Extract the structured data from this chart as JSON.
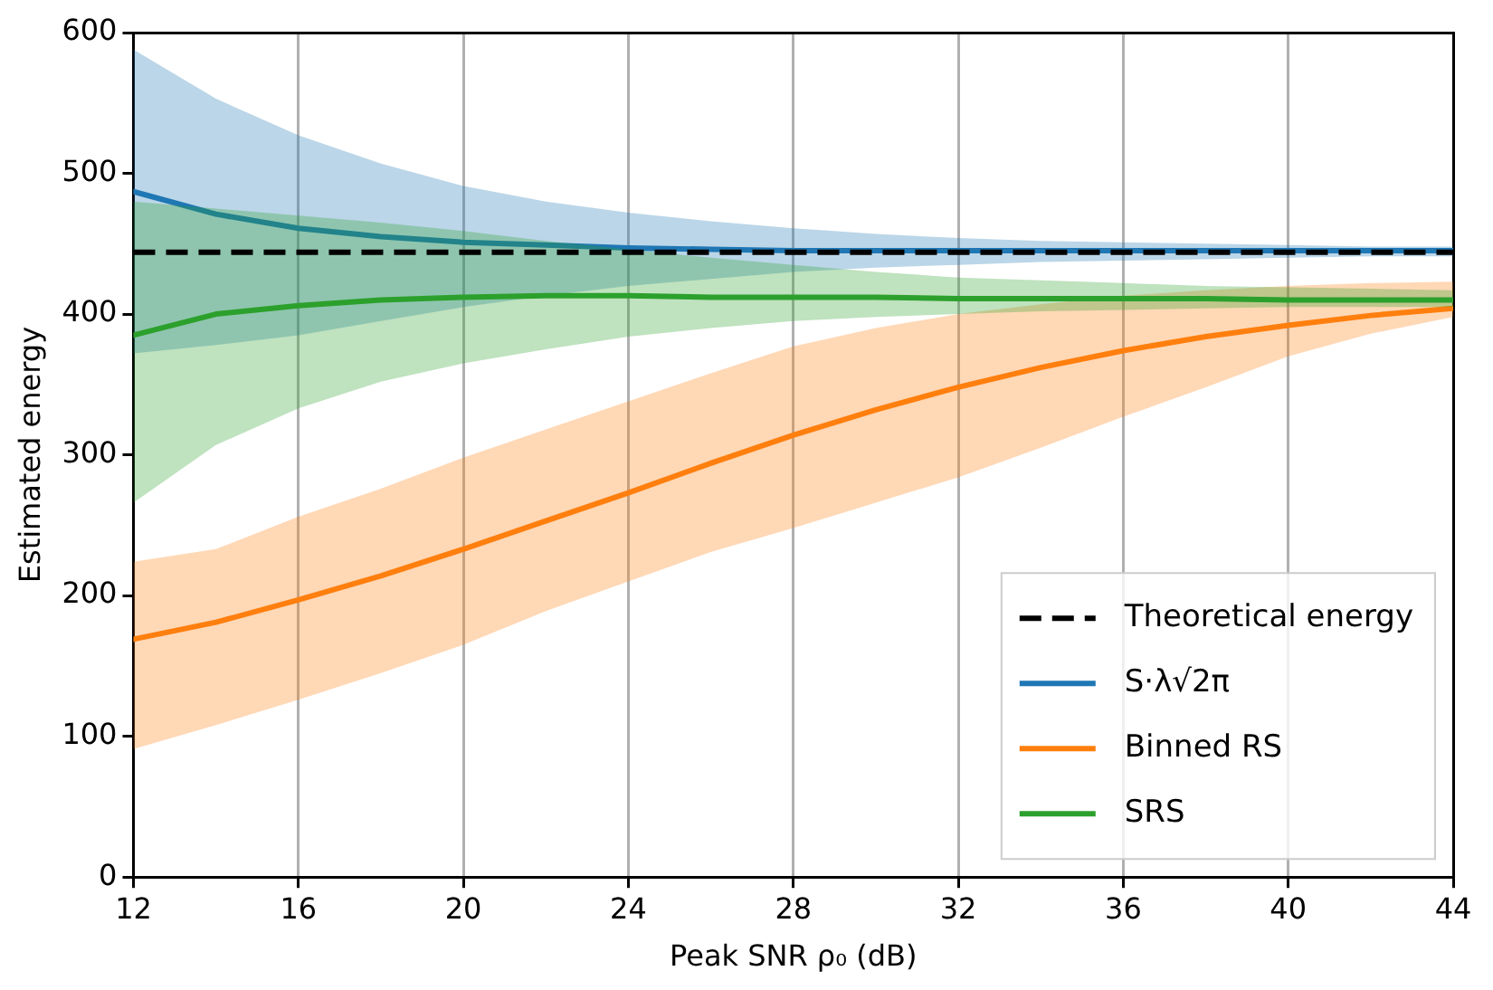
{
  "chart_data": {
    "type": "line",
    "xlabel": "Peak SNR ρ₀ (dB)",
    "ylabel": "Estimated energy",
    "x": [
      12,
      14,
      16,
      18,
      20,
      22,
      24,
      26,
      28,
      30,
      32,
      34,
      36,
      38,
      40,
      42,
      44
    ],
    "xlim": [
      12,
      44
    ],
    "xticks": [
      12,
      16,
      20,
      24,
      28,
      32,
      36,
      40,
      44
    ],
    "ylim": [
      0,
      600
    ],
    "yticks": [
      0,
      100,
      200,
      300,
      400,
      500,
      600
    ],
    "grid": "x",
    "legend": "bottom right",
    "ref_lines": [
      {
        "axis": "y",
        "value": 444,
        "label": "Theoretical energy",
        "color": "#000000",
        "line_style": "dashed"
      }
    ],
    "series": [
      {
        "name": "S·λ√2π",
        "color": "#1f77b4",
        "values": [
          487,
          471,
          461,
          455,
          451,
          449,
          447,
          446,
          445,
          445,
          445,
          445,
          445,
          445,
          445,
          445,
          445
        ],
        "lower": [
          372,
          378,
          385,
          395,
          405,
          413,
          420,
          425,
          430,
          433,
          435,
          437,
          438,
          439,
          440,
          441,
          441
        ],
        "upper": [
          588,
          553,
          527,
          507,
          491,
          480,
          472,
          466,
          461,
          457,
          454,
          452,
          451,
          450,
          449,
          448,
          448
        ]
      },
      {
        "name": "Binned RS",
        "color": "#ff7f0e",
        "values": [
          169,
          181,
          197,
          214,
          233,
          253,
          273,
          294,
          314,
          332,
          348,
          362,
          374,
          384,
          392,
          399,
          404
        ],
        "lower": [
          91,
          108,
          126,
          145,
          165,
          189,
          210,
          231,
          248,
          266,
          284,
          305,
          327,
          348,
          370,
          386,
          398
        ],
        "upper": [
          224,
          233,
          256,
          276,
          298,
          318,
          338,
          358,
          377,
          390,
          400,
          407,
          413,
          417,
          420,
          422,
          423
        ]
      },
      {
        "name": "SRS",
        "color": "#2ca02c",
        "values": [
          385,
          400,
          406,
          410,
          412,
          413,
          413,
          412,
          412,
          412,
          411,
          411,
          411,
          411,
          410,
          410,
          410
        ],
        "lower": [
          266,
          307,
          333,
          352,
          365,
          375,
          384,
          390,
          395,
          398,
          400,
          402,
          403,
          404,
          405,
          405,
          405
        ],
        "upper": [
          480,
          475,
          470,
          465,
          459,
          452,
          446,
          440,
          435,
          430,
          426,
          424,
          422,
          420,
          419,
          418,
          417
        ]
      }
    ]
  }
}
